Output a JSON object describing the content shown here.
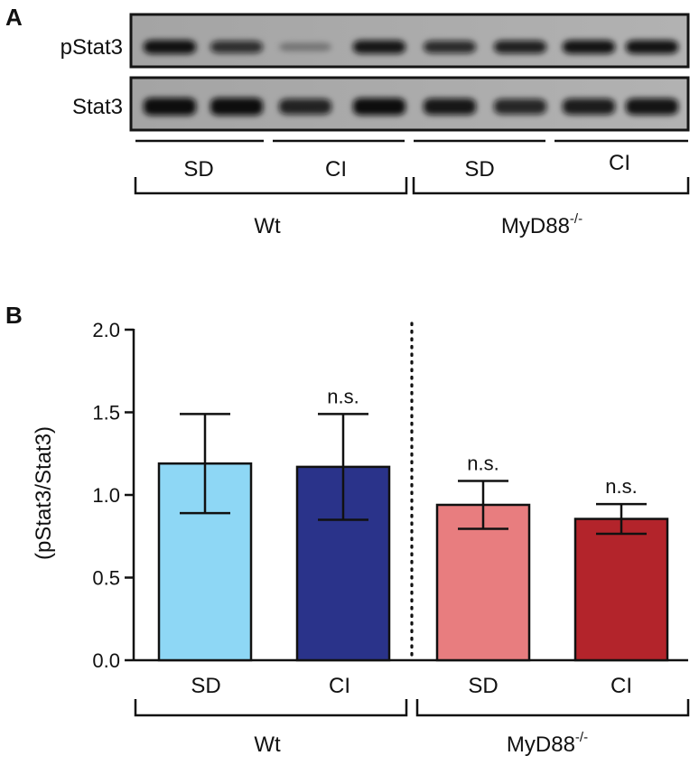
{
  "blot": {
    "panel_letter": "A",
    "rows": [
      "pStat3",
      "Stat3"
    ],
    "lanes": [
      {
        "pstat3_intensity": 0.92,
        "stat3_intensity": 1.0
      },
      {
        "pstat3_intensity": 0.72,
        "stat3_intensity": 1.0
      },
      {
        "pstat3_intensity": 0.18,
        "stat3_intensity": 0.8
      },
      {
        "pstat3_intensity": 0.88,
        "stat3_intensity": 0.95
      },
      {
        "pstat3_intensity": 0.75,
        "stat3_intensity": 0.88
      },
      {
        "pstat3_intensity": 0.82,
        "stat3_intensity": 0.78
      },
      {
        "pstat3_intensity": 0.9,
        "stat3_intensity": 0.85
      },
      {
        "pstat3_intensity": 0.9,
        "stat3_intensity": 0.9
      }
    ],
    "condition_labels": [
      "SD",
      "CI",
      "SD",
      "CI"
    ],
    "group_labels": [
      "Wt",
      "MyD88"
    ],
    "group_superscript": "-/-"
  },
  "chart_data": {
    "type": "bar",
    "panel_letter": "B",
    "categories": [
      "SD",
      "CI",
      "SD",
      "CI"
    ],
    "values": [
      1.19,
      1.17,
      0.94,
      0.855
    ],
    "errors": [
      0.3,
      0.32,
      0.145,
      0.09
    ],
    "annotations": [
      "",
      "n.s.",
      "n.s.",
      "n.s."
    ],
    "colors": [
      "#8ed7f5",
      "#2a338a",
      "#e87d7f",
      "#b3242b"
    ],
    "ylabel": "(pStat3/Stat3)",
    "ylim": [
      0,
      2.0
    ],
    "yticks": [
      "0.0",
      "0.5",
      "1.0",
      "1.5",
      "2.0"
    ],
    "groups": [
      "Wt",
      "MyD88"
    ],
    "group_superscript": "-/-",
    "divider": "dotted"
  }
}
